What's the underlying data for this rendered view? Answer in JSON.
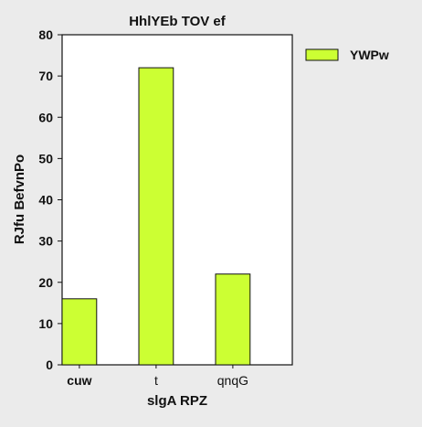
{
  "chart_data": {
    "type": "bar",
    "title": "HhlYEb TOV ef",
    "xlabel": "slgA RPZ",
    "ylabel": "RJfu BefvnPo",
    "categories": [
      "cuw",
      "t",
      "qnqG"
    ],
    "series": [
      {
        "name": "YWPw",
        "values": [
          16,
          72,
          22
        ]
      }
    ],
    "ylim": [
      0,
      80
    ],
    "yticks": [
      0,
      10,
      20,
      30,
      40,
      50,
      60,
      70,
      80
    ],
    "bold_categories": [
      "cuw"
    ],
    "grid": false,
    "legend_position": "top-right-outside",
    "colors": {
      "bar_fill": "#ccff33",
      "bar_stroke": "#111111",
      "plot_background": "#ffffff",
      "page_background": "#ebebeb"
    }
  }
}
